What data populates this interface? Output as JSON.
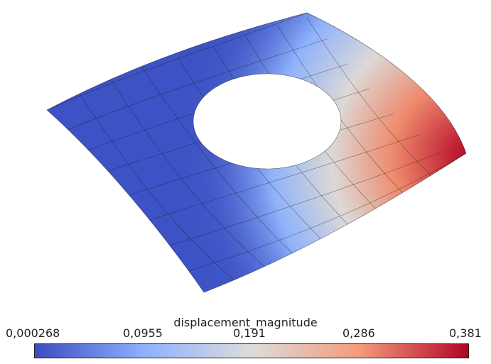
{
  "colorbar": {
    "title": "displacement_magnitude",
    "ticks": [
      "0,000268",
      "0,0955",
      "0,191",
      "0,286",
      "0,381"
    ],
    "colors": [
      "#3b4cc0",
      "#8db0fe",
      "#dddcdc",
      "#f49a7b",
      "#b40426"
    ]
  },
  "surface": {
    "field": "displacement_magnitude",
    "mesh": "curved plate with circular hole"
  }
}
